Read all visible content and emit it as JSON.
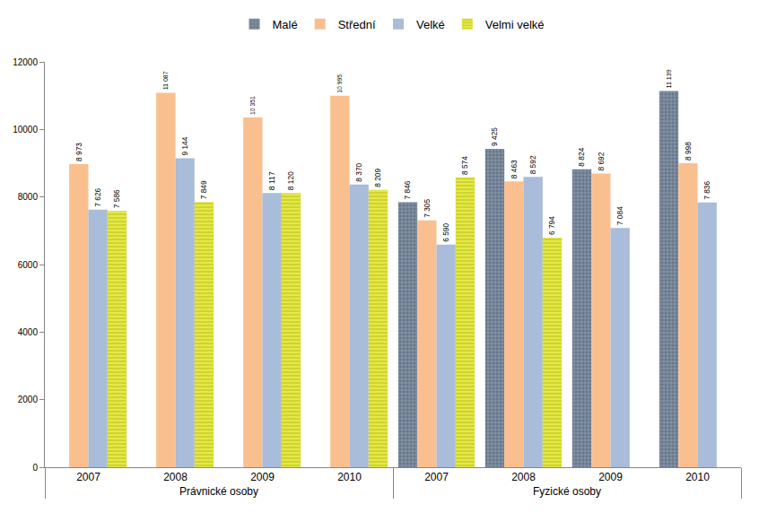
{
  "chart_data": {
    "type": "bar",
    "categories": [
      "2007",
      "2008",
      "2009",
      "2010",
      "2007",
      "2008",
      "2009",
      "2010"
    ],
    "groups": [
      "Právnické osoby",
      "Právnické osoby",
      "Právnické osoby",
      "Právnické osoby",
      "Fyzické osoby",
      "Fyzické osoby",
      "Fyzické osoby",
      "Fyzické osoby"
    ],
    "series": [
      {
        "name": "Malé",
        "color": "#66768c",
        "marker": "grid",
        "values": [
          null,
          null,
          null,
          null,
          7846,
          9425,
          8824,
          11139
        ],
        "value_labels": [
          null,
          null,
          null,
          null,
          "7 846",
          "9 425",
          "8 824",
          "11 139"
        ]
      },
      {
        "name": "Střední",
        "color": "#fabf8f",
        "values": [
          8973,
          11087,
          10351,
          10995,
          7305,
          8463,
          8692,
          8998
        ],
        "value_labels": [
          "8 973",
          "11 087",
          "10 351",
          "10 995",
          "7 305",
          "8 463",
          "8 692",
          "8 998"
        ]
      },
      {
        "name": "Velké",
        "color": "#a9bcd9",
        "values": [
          7626,
          9144,
          8117,
          8370,
          6590,
          8592,
          7084,
          7836
        ],
        "value_labels": [
          "7 626",
          "9 144",
          "8 117",
          "8 370",
          "6 590",
          "8 592",
          "7 084",
          "7 836"
        ]
      },
      {
        "name": "Velmi velké",
        "color": "#e4e84a",
        "marker": "stripes",
        "values": [
          7586,
          7849,
          8120,
          8209,
          8574,
          6794,
          null,
          null
        ],
        "value_labels": [
          "7 586",
          "7 849",
          "8 120",
          "8 209",
          "8 574",
          "6 794",
          null,
          null
        ]
      }
    ],
    "ylim": [
      0,
      12000
    ],
    "yticks": [
      0,
      2000,
      4000,
      6000,
      8000,
      10000,
      12000
    ],
    "grid": false,
    "legend": "top",
    "data_labels": true
  }
}
